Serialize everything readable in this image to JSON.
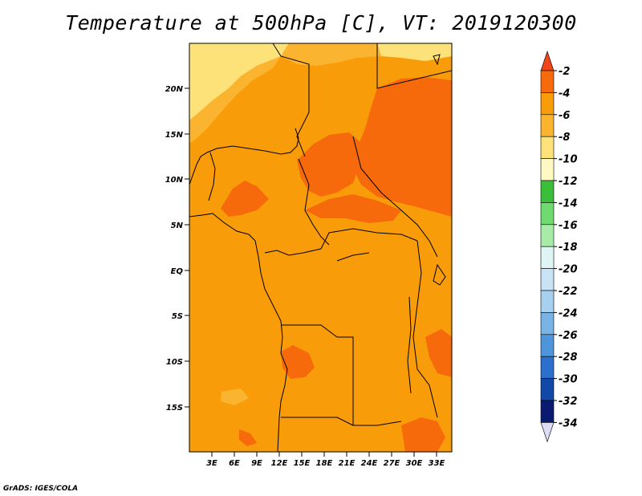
{
  "title": "Temperature at 500hPa [C], VT: 2019120300",
  "credit": "GrADS: IGES/COLA",
  "map": {
    "lat_ticks": [
      "20N",
      "15N",
      "10N",
      "5N",
      "EQ",
      "5S",
      "10S",
      "15S"
    ],
    "lon_ticks": [
      "3E",
      "6E",
      "9E",
      "12E",
      "15E",
      "18E",
      "21E",
      "24E",
      "27E",
      "30E",
      "33E"
    ],
    "colors": {
      "lt_m8": "#fde27a",
      "m8_m6": "#fbb430",
      "m6_m4": "#f99c0a",
      "m4_m2": "#f76a0c",
      "coast": "#000000"
    }
  },
  "colorbar": {
    "labels": [
      "-2",
      "-4",
      "-6",
      "-8",
      "-10",
      "-12",
      "-14",
      "-16",
      "-18",
      "-20",
      "-22",
      "-24",
      "-26",
      "-28",
      "-30",
      "-32",
      "-34"
    ],
    "colors": [
      "#f0441b",
      "#f76a0c",
      "#f99c0a",
      "#fbb430",
      "#fde27a",
      "#fff9c4",
      "#3bbf3b",
      "#6fda6f",
      "#a8eaa8",
      "#dff5f5",
      "#c8e3f5",
      "#a7cfee",
      "#7ab4e6",
      "#4e95dc",
      "#2a70cc",
      "#1248a8",
      "#0a1a70",
      "#dcdcf5"
    ]
  }
}
